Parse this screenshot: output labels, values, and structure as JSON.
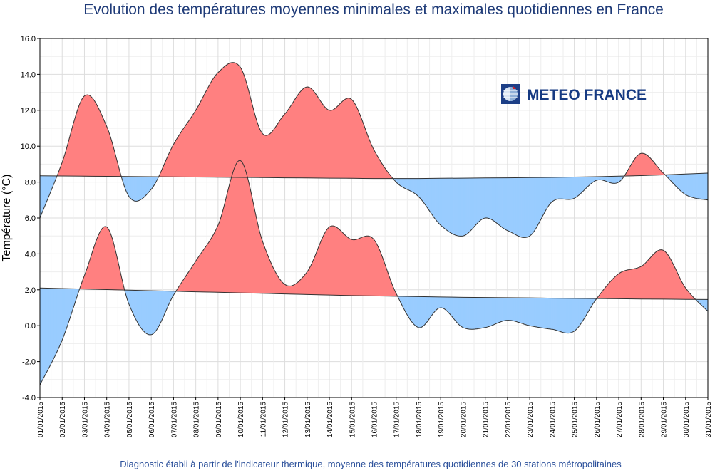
{
  "chart_data": {
    "type": "area",
    "title": "Evolution des températures moyennes minimales et maximales quotidiennes en France",
    "ylabel": "Température (°C)",
    "xlabel": "",
    "footnote": "Diagnostic établi à partir de l'indicateur thermique, moyenne des températures quotidiennes de 30 stations métropolitaines",
    "logo_text": "METEO FRANCE",
    "ylim": [
      -4,
      16
    ],
    "yticks": [
      "-4.0",
      "-2.0",
      "0.0",
      "2.0",
      "4.0",
      "6.0",
      "8.0",
      "10.0",
      "12.0",
      "14.0",
      "16.0"
    ],
    "grid": true,
    "categories": [
      "01/01/2015",
      "02/01/2015",
      "03/01/2015",
      "04/01/2015",
      "05/01/2015",
      "06/01/2015",
      "07/01/2015",
      "08/01/2015",
      "09/01/2015",
      "10/01/2015",
      "11/01/2015",
      "12/01/2015",
      "13/01/2015",
      "14/01/2015",
      "15/01/2015",
      "16/01/2015",
      "17/01/2015",
      "18/01/2015",
      "19/01/2015",
      "20/01/2015",
      "21/01/2015",
      "22/01/2015",
      "23/01/2015",
      "24/01/2015",
      "25/01/2015",
      "26/01/2015",
      "27/01/2015",
      "28/01/2015",
      "29/01/2015",
      "30/01/2015",
      "31/01/2015"
    ],
    "series": [
      {
        "values": [
          6.0,
          9.1,
          12.8,
          11.1,
          7.2,
          7.6,
          10.1,
          12.0,
          14.1,
          14.4,
          10.7,
          11.8,
          13.3,
          12.0,
          12.6,
          9.8,
          8.0,
          7.2,
          5.6,
          5.0,
          6.0,
          5.3,
          5.0,
          6.9,
          7.1,
          8.1,
          8.0,
          9.6,
          8.5,
          7.3,
          7.0
        ]
      },
      {
        "values": [
          8.35,
          8.34,
          8.33,
          8.32,
          8.31,
          8.3,
          8.29,
          8.28,
          8.27,
          8.26,
          8.25,
          8.24,
          8.23,
          8.22,
          8.21,
          8.2,
          8.2,
          8.2,
          8.21,
          8.22,
          8.23,
          8.24,
          8.25,
          8.26,
          8.28,
          8.3,
          8.33,
          8.36,
          8.4,
          8.45,
          8.5
        ]
      },
      {
        "values": [
          -3.3,
          -0.8,
          2.8,
          5.5,
          1.2,
          -0.5,
          1.7,
          3.6,
          5.6,
          9.2,
          4.7,
          2.3,
          3.0,
          5.5,
          4.8,
          4.8,
          1.8,
          -0.1,
          1.0,
          -0.1,
          -0.1,
          0.3,
          0.0,
          -0.2,
          -0.3,
          1.5,
          2.9,
          3.3,
          4.2,
          2.1,
          0.8
        ]
      },
      {
        "values": [
          2.1,
          2.07,
          2.04,
          2.01,
          1.98,
          1.95,
          1.92,
          1.89,
          1.86,
          1.83,
          1.8,
          1.77,
          1.74,
          1.71,
          1.68,
          1.66,
          1.64,
          1.62,
          1.6,
          1.58,
          1.57,
          1.56,
          1.55,
          1.53,
          1.52,
          1.51,
          1.5,
          1.49,
          1.48,
          1.47,
          1.46
        ]
      }
    ],
    "colors": {
      "above": "#ff8080",
      "below": "#99ccff",
      "line": "#333333",
      "grid": "#dddddd",
      "title": "#1f3b78",
      "footnote": "#2a4f9a",
      "logo": "#163a82"
    }
  }
}
